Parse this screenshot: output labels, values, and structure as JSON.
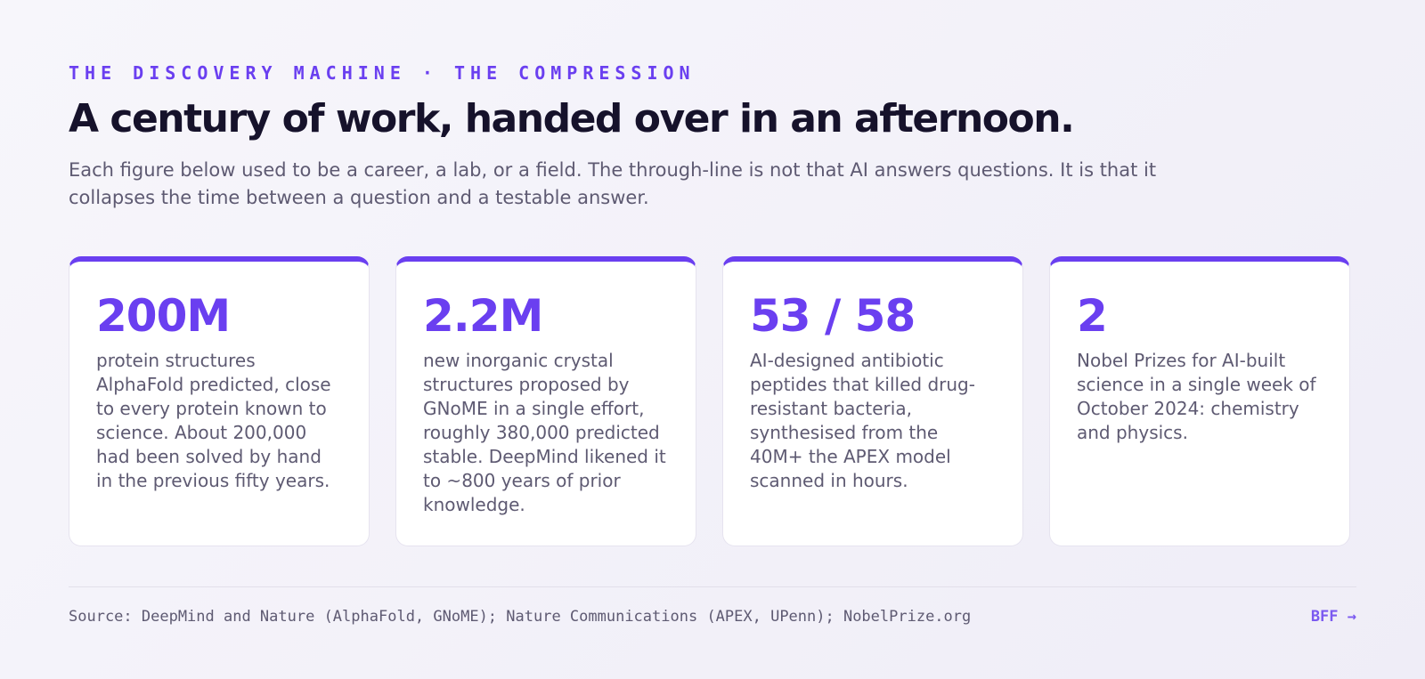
{
  "header": {
    "eyebrow": "THE DISCOVERY MACHINE · THE COMPRESSION",
    "title": "A century of work, handed over in an afternoon.",
    "subtitle": "Each figure below used to be a career, a lab, or a field. The through-line is not that AI answers questions. It is that it collapses the time between a question and a testable answer."
  },
  "cards": [
    {
      "figure": "200M",
      "text": "protein structures AlphaFold predicted, close to every protein known to science. About 200,000 had been solved by hand in the previous fifty years."
    },
    {
      "figure": "2.2M",
      "text": "new inorganic crystal structures proposed by GNoME in a single effort, roughly 380,000 predicted stable. DeepMind likened it to ~800 years of prior knowledge."
    },
    {
      "figure": "53 / 58",
      "text": "AI-designed antibiotic peptides that killed drug-resistant bacteria, synthesised from the 40M+ the APEX model scanned in hours."
    },
    {
      "figure": "2",
      "text": "Nobel Prizes for AI-built science in a single week of October 2024: chemistry and physics."
    }
  ],
  "footer": {
    "source": "Source: DeepMind and Nature (AlphaFold, GNoME); Nature Communications (APEX, UPenn); NobelPrize.org",
    "brand": "BFF →"
  }
}
